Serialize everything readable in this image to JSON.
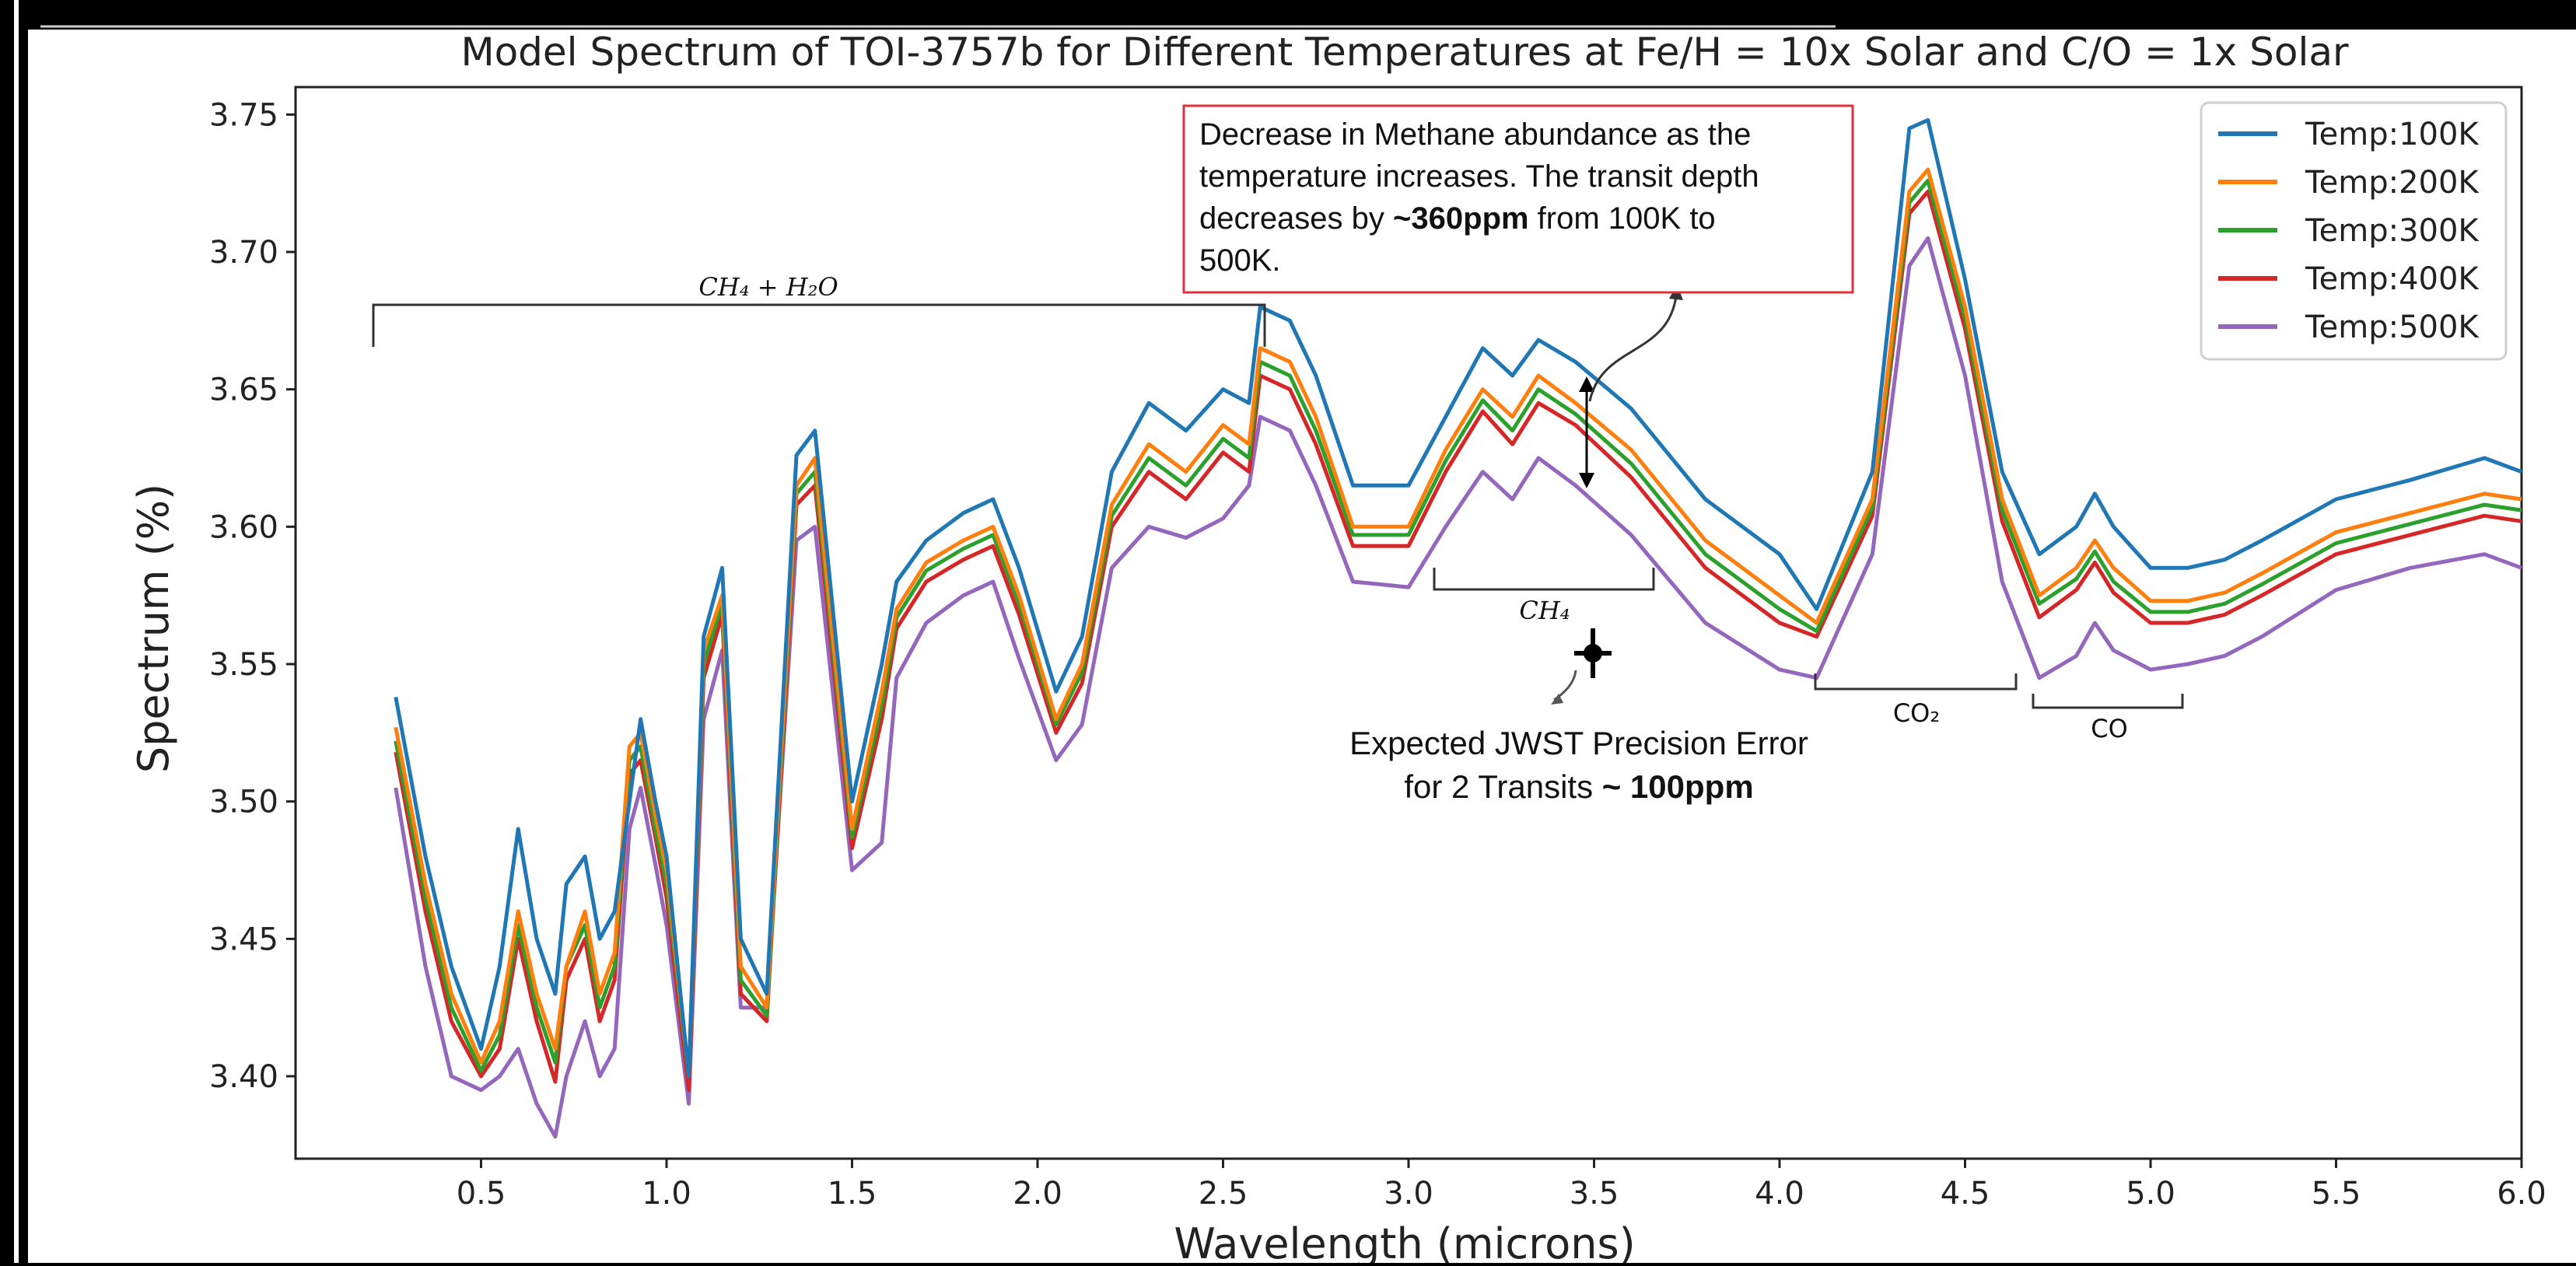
{
  "chart_data": {
    "type": "line",
    "title": "Model Spectrum of TOI-3757b for Different Temperatures at Fe/H = 10x Solar and C/O = 1x Solar",
    "xlabel": "Wavelength (microns)",
    "ylabel": "Spectrum (%)",
    "xlim": [
      0.0,
      6.0
    ],
    "ylim": [
      3.37,
      3.76
    ],
    "xticks": [
      "0.5",
      "1.0",
      "1.5",
      "2.0",
      "2.5",
      "3.0",
      "3.5",
      "4.0",
      "4.5",
      "5.0",
      "5.5",
      "6.0"
    ],
    "yticks": [
      "3.40",
      "3.45",
      "3.50",
      "3.55",
      "3.60",
      "3.65",
      "3.70",
      "3.75"
    ],
    "legend_position": "top-right",
    "x": [
      0.27,
      0.35,
      0.42,
      0.5,
      0.55,
      0.6,
      0.65,
      0.7,
      0.73,
      0.78,
      0.82,
      0.86,
      0.9,
      0.93,
      0.97,
      1.0,
      1.06,
      1.1,
      1.15,
      1.2,
      1.27,
      1.35,
      1.4,
      1.5,
      1.58,
      1.62,
      1.7,
      1.8,
      1.88,
      1.95,
      2.05,
      2.12,
      2.2,
      2.3,
      2.4,
      2.5,
      2.57,
      2.6,
      2.68,
      2.75,
      2.85,
      3.0,
      3.1,
      3.2,
      3.28,
      3.35,
      3.45,
      3.6,
      3.8,
      4.0,
      4.1,
      4.25,
      4.35,
      4.4,
      4.5,
      4.6,
      4.7,
      4.8,
      4.85,
      4.9,
      5.0,
      5.1,
      5.2,
      5.3,
      5.5,
      5.7,
      5.9,
      6.0
    ],
    "series": [
      {
        "name": "Temp:100K",
        "color": "#1f77b4",
        "values": [
          3.538,
          3.48,
          3.44,
          3.41,
          3.44,
          3.49,
          3.45,
          3.43,
          3.47,
          3.48,
          3.45,
          3.46,
          3.5,
          3.53,
          3.5,
          3.48,
          3.4,
          3.56,
          3.585,
          3.45,
          3.43,
          3.626,
          3.635,
          3.5,
          3.55,
          3.58,
          3.595,
          3.605,
          3.61,
          3.585,
          3.54,
          3.56,
          3.62,
          3.645,
          3.635,
          3.65,
          3.645,
          3.68,
          3.675,
          3.655,
          3.615,
          3.615,
          3.64,
          3.665,
          3.655,
          3.668,
          3.66,
          3.643,
          3.61,
          3.59,
          3.57,
          3.62,
          3.745,
          3.748,
          3.69,
          3.62,
          3.59,
          3.6,
          3.612,
          3.6,
          3.585,
          3.585,
          3.588,
          3.595,
          3.61,
          3.617,
          3.625,
          3.62
        ]
      },
      {
        "name": "Temp:200K",
        "color": "#ff7f0e",
        "values": [
          3.527,
          3.47,
          3.43,
          3.405,
          3.42,
          3.46,
          3.43,
          3.41,
          3.44,
          3.46,
          3.43,
          3.445,
          3.52,
          3.525,
          3.495,
          3.475,
          3.4,
          3.555,
          3.575,
          3.44,
          3.425,
          3.615,
          3.625,
          3.49,
          3.54,
          3.57,
          3.587,
          3.595,
          3.6,
          3.575,
          3.53,
          3.55,
          3.608,
          3.63,
          3.62,
          3.637,
          3.63,
          3.665,
          3.66,
          3.64,
          3.6,
          3.6,
          3.628,
          3.65,
          3.64,
          3.655,
          3.645,
          3.628,
          3.595,
          3.575,
          3.565,
          3.61,
          3.722,
          3.73,
          3.68,
          3.61,
          3.575,
          3.585,
          3.595,
          3.585,
          3.573,
          3.573,
          3.576,
          3.583,
          3.598,
          3.605,
          3.612,
          3.61
        ]
      },
      {
        "name": "Temp:300K",
        "color": "#2ca02c",
        "values": [
          3.522,
          3.465,
          3.425,
          3.402,
          3.415,
          3.455,
          3.425,
          3.405,
          3.44,
          3.455,
          3.425,
          3.44,
          3.515,
          3.52,
          3.49,
          3.47,
          3.4,
          3.55,
          3.572,
          3.435,
          3.422,
          3.612,
          3.62,
          3.487,
          3.535,
          3.567,
          3.584,
          3.592,
          3.597,
          3.572,
          3.528,
          3.547,
          3.604,
          3.625,
          3.615,
          3.632,
          3.625,
          3.66,
          3.655,
          3.635,
          3.597,
          3.597,
          3.624,
          3.646,
          3.635,
          3.65,
          3.641,
          3.623,
          3.59,
          3.57,
          3.562,
          3.607,
          3.718,
          3.726,
          3.676,
          3.606,
          3.572,
          3.581,
          3.591,
          3.58,
          3.569,
          3.569,
          3.572,
          3.579,
          3.594,
          3.601,
          3.608,
          3.606
        ]
      },
      {
        "name": "Temp:400K",
        "color": "#d62728",
        "values": [
          3.518,
          3.46,
          3.42,
          3.4,
          3.41,
          3.45,
          3.42,
          3.398,
          3.435,
          3.45,
          3.42,
          3.435,
          3.51,
          3.515,
          3.487,
          3.465,
          3.395,
          3.545,
          3.568,
          3.43,
          3.42,
          3.608,
          3.615,
          3.483,
          3.53,
          3.563,
          3.58,
          3.588,
          3.593,
          3.568,
          3.525,
          3.543,
          3.6,
          3.62,
          3.61,
          3.627,
          3.62,
          3.655,
          3.65,
          3.63,
          3.593,
          3.593,
          3.62,
          3.642,
          3.63,
          3.645,
          3.637,
          3.618,
          3.585,
          3.565,
          3.56,
          3.604,
          3.714,
          3.722,
          3.672,
          3.602,
          3.567,
          3.577,
          3.587,
          3.576,
          3.565,
          3.565,
          3.568,
          3.575,
          3.59,
          3.597,
          3.604,
          3.602
        ]
      },
      {
        "name": "Temp:500K",
        "color": "#9467bd",
        "values": [
          3.505,
          3.44,
          3.4,
          3.395,
          3.4,
          3.41,
          3.39,
          3.378,
          3.4,
          3.42,
          3.4,
          3.41,
          3.49,
          3.505,
          3.477,
          3.455,
          3.39,
          3.53,
          3.555,
          3.425,
          3.425,
          3.595,
          3.6,
          3.475,
          3.485,
          3.545,
          3.565,
          3.575,
          3.58,
          3.552,
          3.515,
          3.528,
          3.585,
          3.6,
          3.596,
          3.603,
          3.615,
          3.64,
          3.635,
          3.615,
          3.58,
          3.578,
          3.6,
          3.62,
          3.61,
          3.625,
          3.615,
          3.597,
          3.565,
          3.548,
          3.545,
          3.59,
          3.695,
          3.705,
          3.655,
          3.58,
          3.545,
          3.553,
          3.565,
          3.555,
          3.548,
          3.55,
          3.553,
          3.56,
          3.577,
          3.585,
          3.59,
          3.585
        ]
      }
    ]
  },
  "annotations": {
    "callout_line1": "Decrease in Methane abundance as the",
    "callout_line2": "temperature increases. The transit depth",
    "callout_line3a": "decreases by ",
    "callout_line3b": "~360ppm",
    "callout_line3c": " from 100K to",
    "callout_line4": "500K.",
    "precision_line1": "Expected JWST Precision Error",
    "precision_line2a": "for 2 Transits ",
    "precision_line2b": "~ 100ppm",
    "bracket_ch4_h2o": "CH₄ + H₂O",
    "bracket_ch4": "CH₄",
    "bracket_co2": "CO₂",
    "bracket_co": "CO"
  }
}
